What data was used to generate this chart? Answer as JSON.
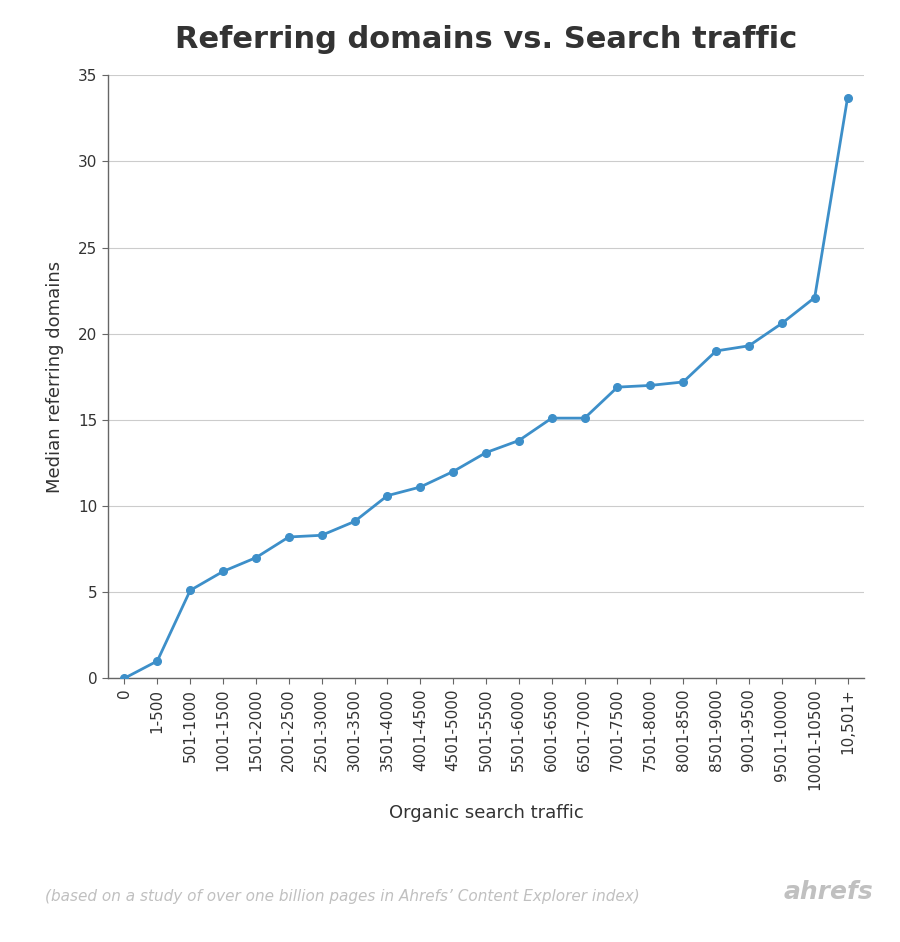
{
  "title": "Referring domains vs. Search traffic",
  "xlabel": "Organic search traffic",
  "ylabel": "Median referring domains",
  "footnote": "(based on a study of over one billion pages in Ahrefs’ Content Explorer index)",
  "brand": "ahrefs",
  "categories": [
    "0",
    "1-500",
    "501-1000",
    "1001-1500",
    "1501-2000",
    "2001-2500",
    "2501-3000",
    "3001-3500",
    "3501-4000",
    "4001-4500",
    "4501-5000",
    "5001-5500",
    "5501-6000",
    "6001-6500",
    "6501-7000",
    "7001-7500",
    "7501-8000",
    "8001-8500",
    "8501-9000",
    "9001-9500",
    "9501-10000",
    "10001-10500",
    "10,501+"
  ],
  "values": [
    0.0,
    1.0,
    5.1,
    6.2,
    7.0,
    8.2,
    8.3,
    9.1,
    10.6,
    11.1,
    12.0,
    13.1,
    13.8,
    15.1,
    15.1,
    16.9,
    17.0,
    17.2,
    19.0,
    19.3,
    20.6,
    22.1,
    33.7
  ],
  "line_color": "#3d8fc9",
  "marker_color": "#3d8fc9",
  "background_color": "#ffffff",
  "grid_color": "#cccccc",
  "spine_color": "#666666",
  "text_color": "#333333",
  "footnote_color": "#c0c0c0",
  "ylim": [
    0,
    35
  ],
  "yticks": [
    0,
    5,
    10,
    15,
    20,
    25,
    30,
    35
  ],
  "title_fontsize": 22,
  "axis_label_fontsize": 13,
  "tick_fontsize": 11,
  "footnote_fontsize": 11,
  "brand_fontsize": 18
}
